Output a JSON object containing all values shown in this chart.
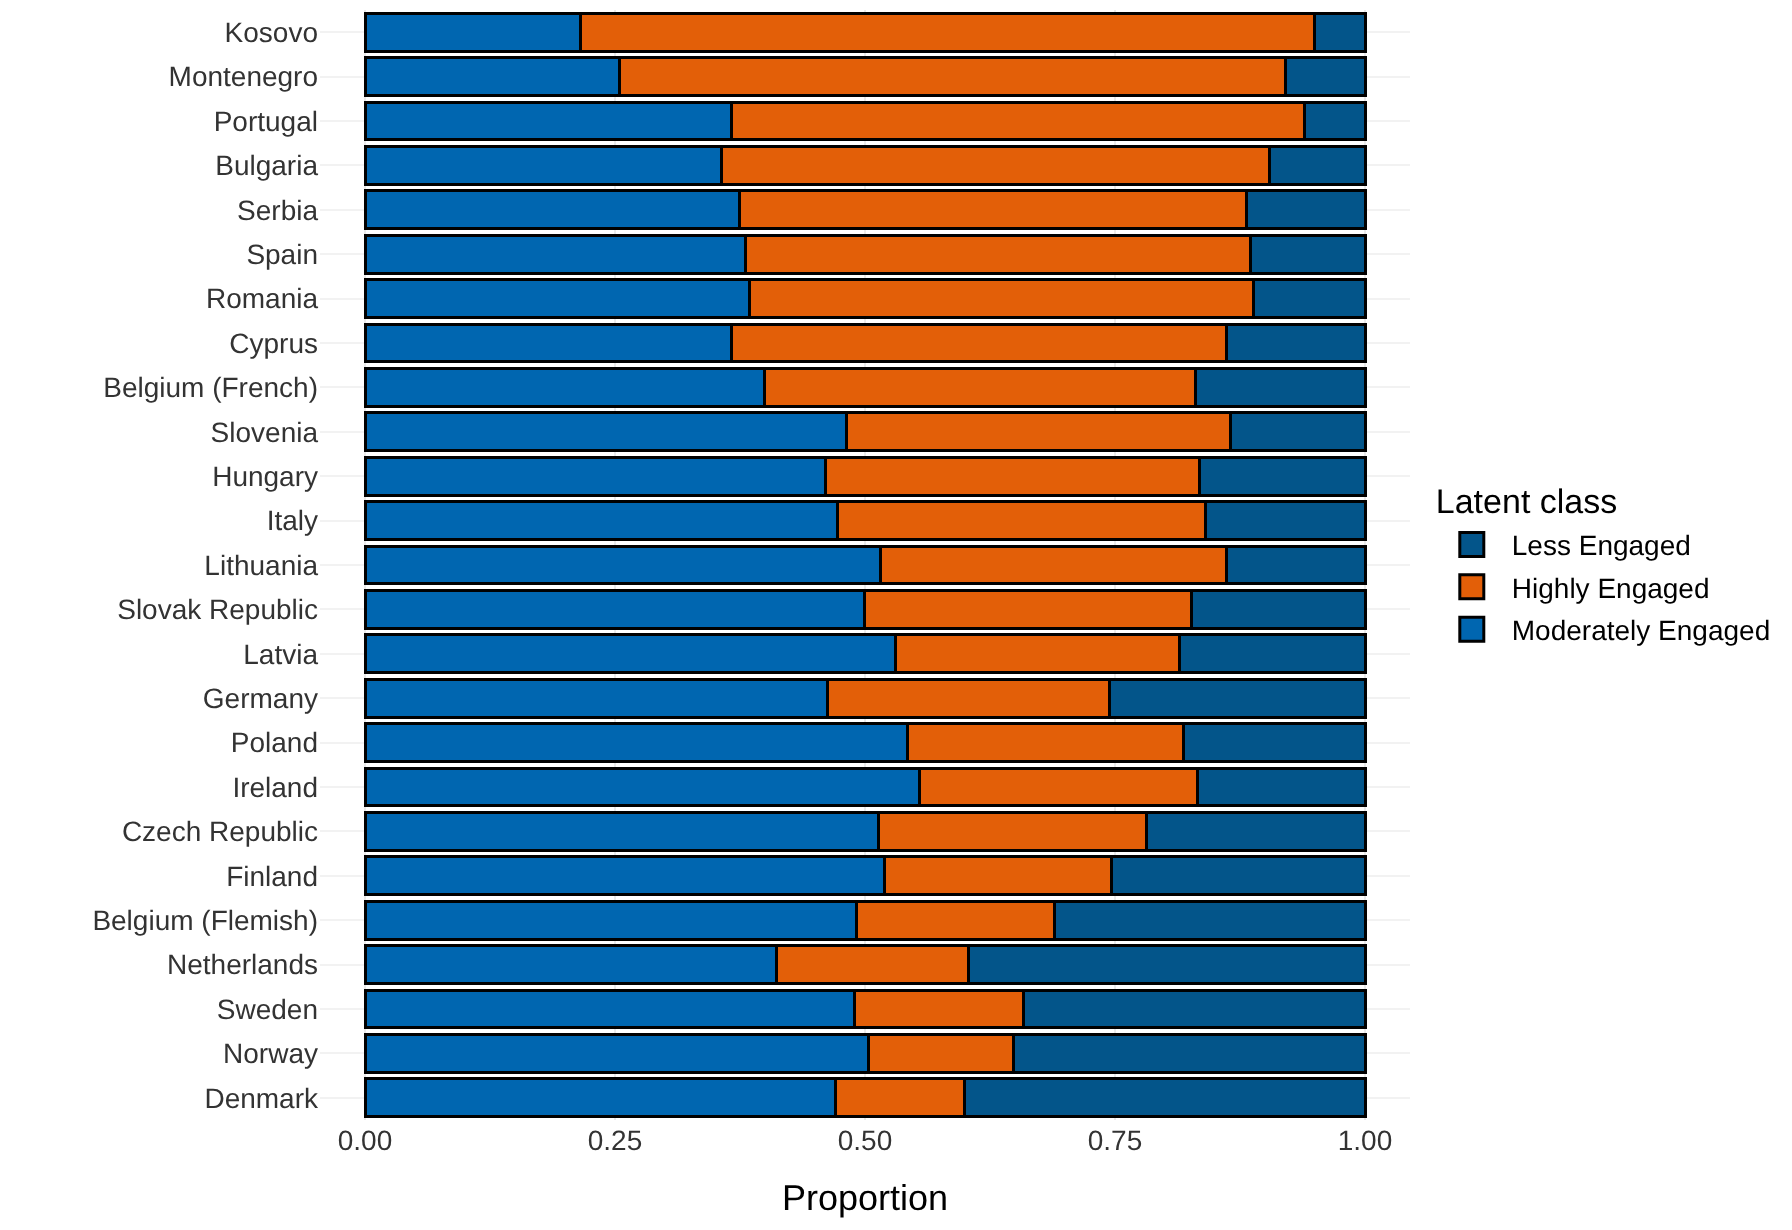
{
  "chart_data": {
    "type": "bar",
    "orientation": "horizontal",
    "stacked": true,
    "xlabel": "Proportion",
    "legend_title": "Latent class",
    "legend": "right",
    "categories": [
      "Kosovo",
      "Montenegro",
      "Portugal",
      "Bulgaria",
      "Serbia",
      "Spain",
      "Romania",
      "Cyprus",
      "Belgium (French)",
      "Slovenia",
      "Hungary",
      "Italy",
      "Lithuania",
      "Slovak Republic",
      "Latvia",
      "Germany",
      "Poland",
      "Ireland",
      "Czech Republic",
      "Finland",
      "Belgium (Flemish)",
      "Netherlands",
      "Sweden",
      "Norway",
      "Denmark"
    ],
    "series": [
      {
        "name": "Moderately Engaged",
        "color": "#0066b0",
        "values": [
          0.215,
          0.254,
          0.366,
          0.356,
          0.374,
          0.38,
          0.384,
          0.366,
          0.399,
          0.481,
          0.46,
          0.472,
          0.515,
          0.499,
          0.53,
          0.462,
          0.542,
          0.554,
          0.513,
          0.519,
          0.491,
          0.411,
          0.489,
          0.503,
          0.47
        ]
      },
      {
        "name": "Highly Engaged",
        "color": "#e35f08",
        "values": [
          0.734,
          0.666,
          0.573,
          0.548,
          0.507,
          0.505,
          0.504,
          0.495,
          0.431,
          0.384,
          0.374,
          0.368,
          0.346,
          0.327,
          0.284,
          0.282,
          0.276,
          0.278,
          0.268,
          0.227,
          0.198,
          0.192,
          0.169,
          0.145,
          0.129
        ]
      },
      {
        "name": "Less Engaged",
        "color": "#03558a",
        "values": [
          0.051,
          0.08,
          0.061,
          0.096,
          0.119,
          0.115,
          0.112,
          0.139,
          0.17,
          0.135,
          0.166,
          0.16,
          0.139,
          0.174,
          0.186,
          0.256,
          0.182,
          0.168,
          0.219,
          0.254,
          0.311,
          0.397,
          0.342,
          0.352,
          0.401
        ]
      }
    ],
    "xlim": [
      -0.045,
      1.045
    ],
    "xticks": [
      {
        "value": 0,
        "label": "0.00"
      },
      0.25,
      {
        "value": 0.5,
        "label": "0.50"
      },
      0.75,
      {
        "value": 1,
        "label": "1.00"
      }
    ],
    "grid": true
  }
}
